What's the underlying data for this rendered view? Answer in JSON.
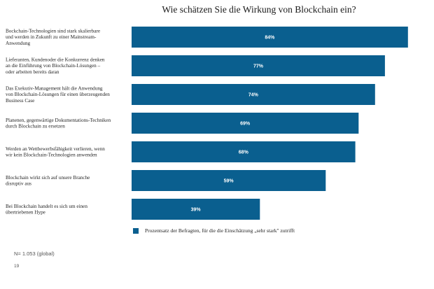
{
  "colors": {
    "bar": "#0a5f8f",
    "bar_label": "#ffffff",
    "text": "#222222"
  },
  "chart_data": {
    "type": "bar",
    "orientation": "horizontal",
    "title": "Wie schätzen Sie die Wirkung von Blockchain ein?",
    "categories": [
      [
        "Bockchain-Technologien sind stark skalierbare",
        "und werden in Zukunft zu einer Mainstream-",
        "Anwendung"
      ],
      [
        "Lieferanten, Kundenoder die Konkurrenz denken",
        "an die Einführung von Blockchain-Lösungen –",
        "oder arbeiten bereits daran"
      ],
      [
        "Das Exekutiv-Management hält die Anwendung",
        "von Blockchain-Lösungen für einen überzeugenden",
        "Business Case"
      ],
      [
        "Planenen, gegenwärtige Dokumentations-Techniken",
        "durch Blockchain zu ersetzen"
      ],
      [
        "Werden an Wettbewerbsfähigkeit verlieren, wenn",
        "wir kein Blockchain-Technologien anwenden"
      ],
      [
        "Blockchain wirkt sich auf unsere Branche",
        "disruptiv aus"
      ],
      [
        "Bei Blockchain handelt es sich um einen",
        "übertriebenen Hype"
      ]
    ],
    "values": [
      84,
      77,
      74,
      69,
      68,
      59,
      39
    ],
    "value_labels": [
      "84%",
      "77%",
      "74%",
      "69%",
      "68%",
      "59%",
      "39%"
    ],
    "series": [
      {
        "name": "Prozentsatz der Befragten, für die die Einschätzung „sehr stark\" zutrifft",
        "values": [
          84,
          77,
          74,
          69,
          68,
          59,
          39
        ]
      }
    ],
    "xlim": [
      0,
      100
    ],
    "grid": false,
    "legend_position": "bottom"
  },
  "legend": {
    "label": "Prozentsatz der Befragten, für die die Einschätzung „sehr stark\" zutrifft"
  },
  "footnote": "N= 1.053 (global)",
  "page_number": "19"
}
